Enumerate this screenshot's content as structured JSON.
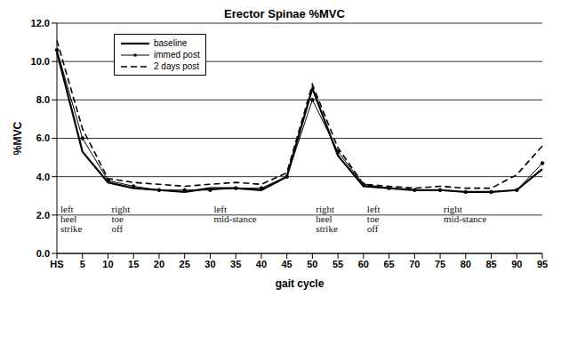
{
  "chart_data": {
    "type": "line",
    "title": "Erector Spinae %MVC",
    "x_label": "gait cycle",
    "y_label": "%MVC",
    "categories": [
      "HS",
      "5",
      "10",
      "15",
      "20",
      "25",
      "30",
      "35",
      "40",
      "45",
      "50",
      "55",
      "60",
      "65",
      "70",
      "75",
      "80",
      "85",
      "90",
      "95"
    ],
    "series": [
      {
        "name": "baseline",
        "color": "#000000",
        "line_style": "solid",
        "marker": "none",
        "values": [
          10.5,
          5.3,
          3.7,
          3.4,
          3.3,
          3.2,
          3.4,
          3.4,
          3.3,
          4.0,
          8.6,
          5.1,
          3.5,
          3.4,
          3.3,
          3.3,
          3.2,
          3.2,
          3.3,
          4.4
        ]
      },
      {
        "name": "immed post",
        "color": "#000000",
        "line_style": "solid",
        "marker": "circle",
        "values": [
          10.6,
          6.0,
          3.8,
          3.5,
          3.3,
          3.3,
          3.3,
          3.4,
          3.4,
          4.0,
          8.0,
          5.3,
          3.6,
          3.4,
          3.3,
          3.3,
          3.2,
          3.2,
          3.3,
          4.7
        ]
      },
      {
        "name": "2 days post",
        "color": "#000000",
        "line_style": "dashed",
        "marker": "none",
        "values": [
          11.1,
          6.5,
          3.9,
          3.7,
          3.6,
          3.5,
          3.6,
          3.7,
          3.6,
          4.2,
          8.8,
          5.5,
          3.6,
          3.5,
          3.4,
          3.5,
          3.4,
          3.4,
          4.1,
          5.6
        ]
      }
    ],
    "ylim": [
      0,
      12
    ],
    "yticks": [
      {
        "value": 0,
        "label": "0.0"
      },
      {
        "value": 2,
        "label": "2.0"
      },
      {
        "value": 4,
        "label": "4.0"
      },
      {
        "value": 6,
        "label": "6.0"
      },
      {
        "value": 8,
        "label": "8.0"
      },
      {
        "value": 10,
        "label": "10.0"
      },
      {
        "value": 12,
        "label": "12.0"
      }
    ],
    "grid": true,
    "legend": "upper left",
    "annotations": [
      {
        "x": "HS",
        "text": [
          "left",
          "heel",
          "strike"
        ]
      },
      {
        "x": "10",
        "text": [
          "right",
          "toe",
          "off"
        ]
      },
      {
        "x": "30",
        "text": [
          "left",
          "mid-stance"
        ]
      },
      {
        "x": "50",
        "text": [
          "right",
          "heel",
          "strike"
        ]
      },
      {
        "x": "60",
        "text": [
          "left",
          "toe",
          "off"
        ]
      },
      {
        "x": "75",
        "text": [
          "right",
          "mid-stance"
        ]
      }
    ]
  }
}
